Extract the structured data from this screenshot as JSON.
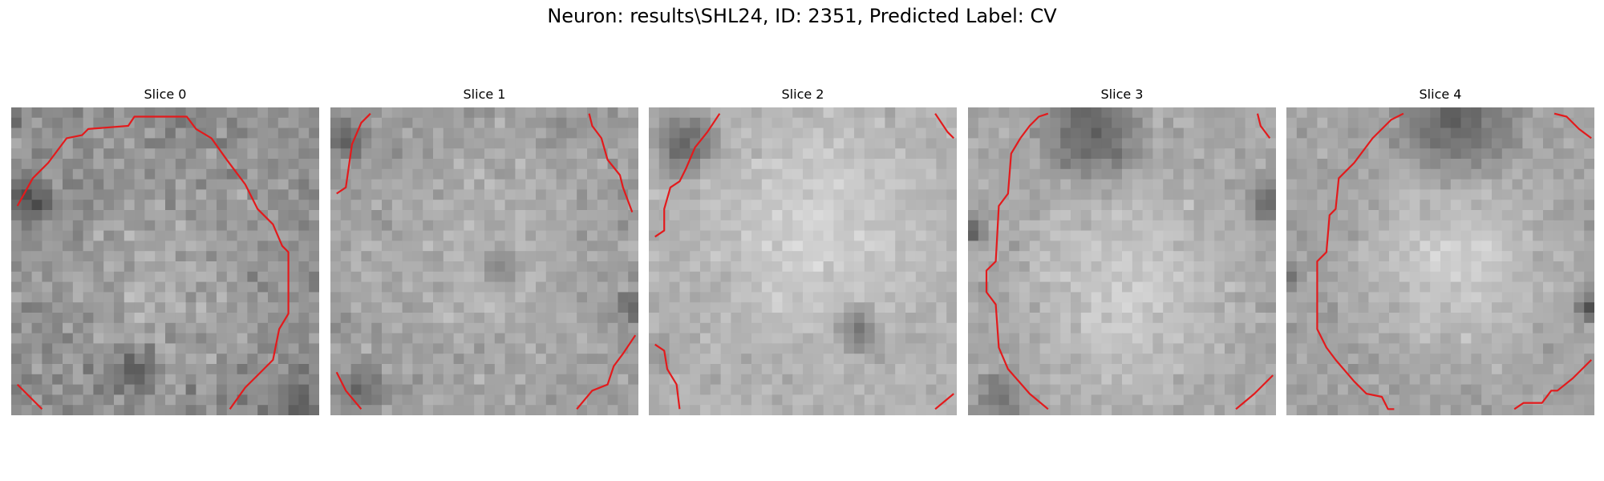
{
  "figure": {
    "title": "Neuron: results\\SHL24, ID: 2351, Predicted Label: CV",
    "contour_color": "#e31a1c",
    "colormap": "gray",
    "grid_size": 30
  },
  "panels": [
    {
      "title": "Slice 0"
    },
    {
      "title": "Slice 1"
    },
    {
      "title": "Slice 2"
    },
    {
      "title": "Slice 3"
    },
    {
      "title": "Slice 4"
    }
  ]
}
